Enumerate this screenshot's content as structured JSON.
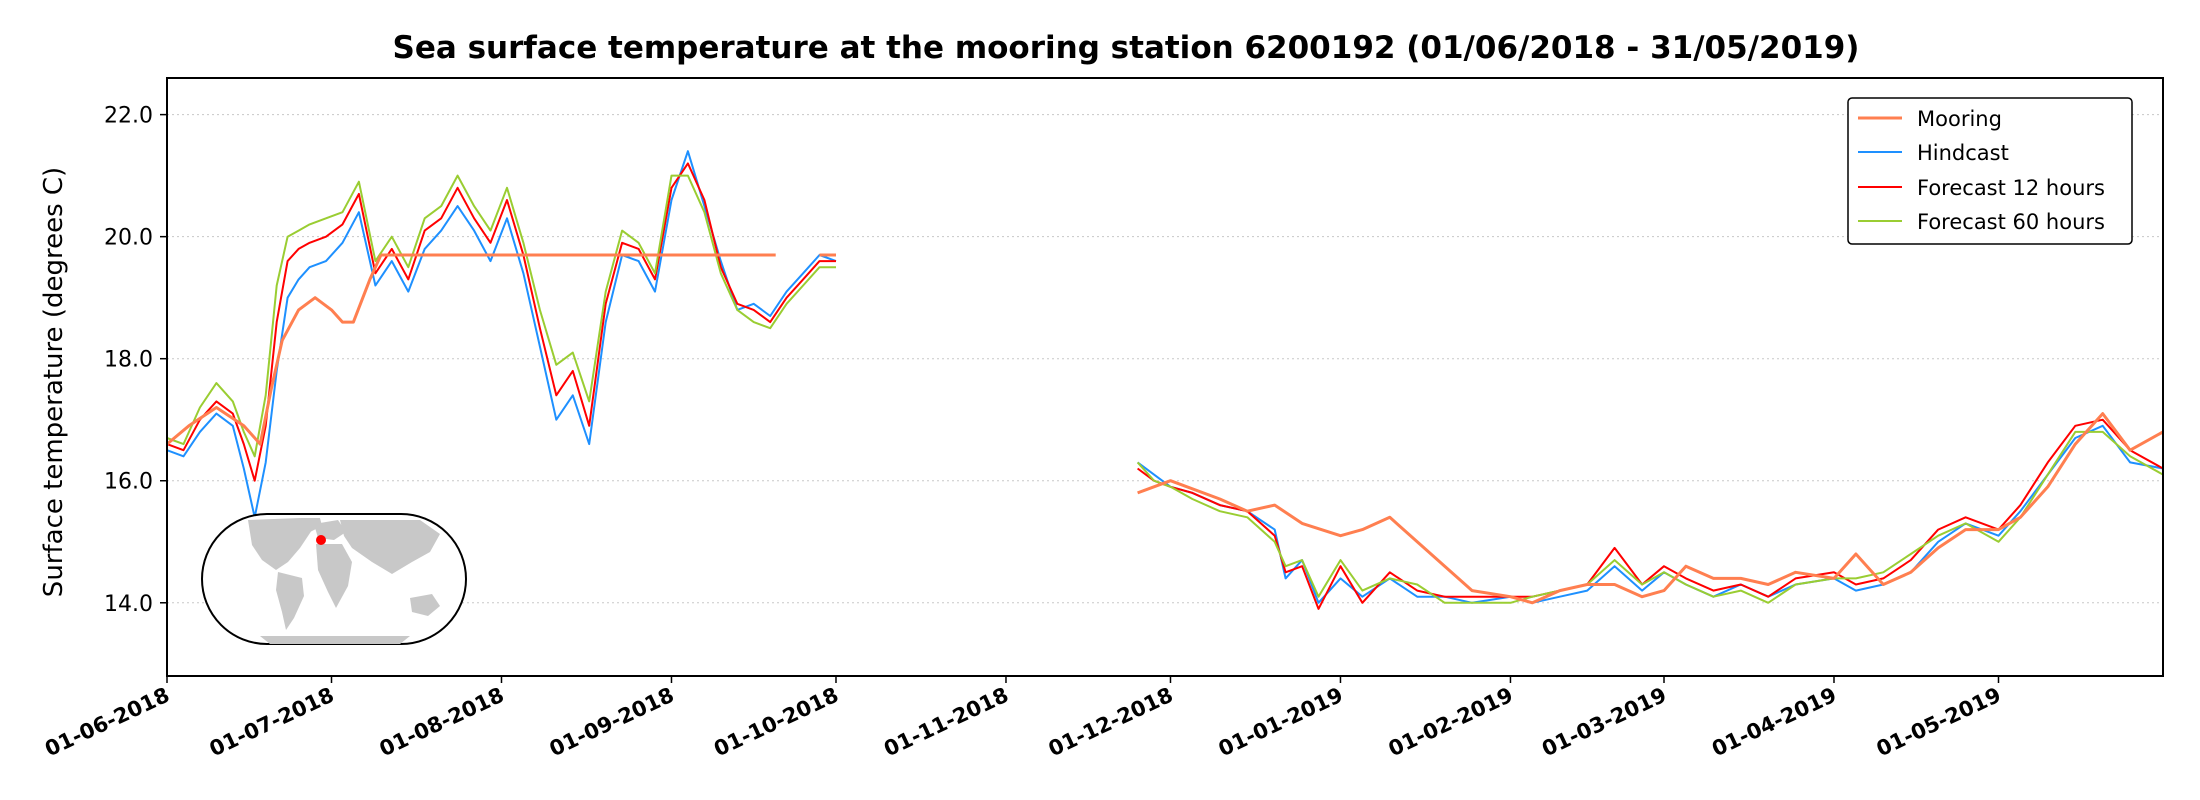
{
  "chart_data": {
    "type": "line",
    "title": "Sea surface temperature at the mooring station 6200192 (01/06/2018 - 31/05/2019)",
    "xlabel": "",
    "ylabel": "Surface temperature (degrees C)",
    "xlim": [
      "2018-06-01",
      "2019-05-31"
    ],
    "ylim": [
      12.8,
      22.6
    ],
    "yticks": [
      14.0,
      16.0,
      18.0,
      20.0,
      22.0
    ],
    "ytick_labels": [
      "14.0",
      "16.0",
      "18.0",
      "20.0",
      "22.0"
    ],
    "xticks": [
      "2018-06-01",
      "2018-07-01",
      "2018-08-01",
      "2018-09-01",
      "2018-10-01",
      "2018-11-01",
      "2018-12-01",
      "2019-01-01",
      "2019-02-01",
      "2019-03-01",
      "2019-04-01",
      "2019-05-01"
    ],
    "xtick_labels": [
      "01-06-2018",
      "01-07-2018",
      "01-08-2018",
      "01-09-2018",
      "01-10-2018",
      "01-11-2018",
      "01-12-2018",
      "01-01-2019",
      "01-02-2019",
      "01-03-2019",
      "01-04-2019",
      "01-05-2019"
    ],
    "grid": "horizontal dotted",
    "legend_position": "top-right",
    "inset": "world map with station location dot (red)",
    "series": [
      {
        "name": "Mooring",
        "color": "#ff7f50",
        "x": [
          "2018-06-01",
          "2018-06-05",
          "2018-06-10",
          "2018-06-15",
          "2018-06-18",
          "2018-06-20",
          "2018-06-22",
          "2018-06-25",
          "2018-06-28",
          "2018-07-01",
          "2018-07-03",
          "2018-07-05",
          "2018-07-08",
          "2018-07-10",
          null,
          "2018-07-10",
          "2018-08-15",
          "2018-09-01",
          "2018-09-20",
          null,
          "2018-09-28",
          "2018-10-01",
          null,
          "2018-11-25",
          "2018-12-01",
          "2018-12-10",
          "2018-12-15",
          "2018-12-20",
          "2018-12-25",
          "2019-01-01",
          "2019-01-05",
          "2019-01-10",
          "2019-01-15",
          "2019-01-20",
          "2019-01-25",
          "2019-02-01",
          "2019-02-05",
          "2019-02-10",
          "2019-02-15",
          "2019-02-20",
          "2019-02-25",
          "2019-03-01",
          "2019-03-05",
          "2019-03-10",
          "2019-03-15",
          "2019-03-20",
          "2019-03-25",
          "2019-04-01",
          "2019-04-05",
          "2019-04-10",
          "2019-04-15",
          "2019-04-20",
          "2019-04-25",
          "2019-05-01",
          "2019-05-05",
          "2019-05-10",
          "2019-05-15",
          "2019-05-20",
          "2019-05-25",
          "2019-05-31"
        ],
        "y": [
          16.6,
          16.9,
          17.2,
          16.9,
          16.6,
          17.5,
          18.3,
          18.8,
          19.0,
          18.8,
          18.6,
          18.6,
          19.3,
          19.7,
          null,
          19.7,
          19.7,
          19.7,
          19.7,
          null,
          19.7,
          19.7,
          null,
          15.8,
          16.0,
          15.7,
          15.5,
          15.6,
          15.3,
          15.1,
          15.2,
          15.4,
          15.0,
          14.6,
          14.2,
          14.1,
          14.0,
          14.2,
          14.3,
          14.3,
          14.1,
          14.2,
          14.6,
          14.4,
          14.4,
          14.3,
          14.5,
          14.4,
          14.8,
          14.3,
          14.5,
          14.9,
          15.2,
          15.2,
          15.4,
          15.9,
          16.6,
          17.1,
          16.5,
          16.8
        ]
      },
      {
        "name": "Hindcast",
        "color": "#1e90ff",
        "x": [
          "2018-06-01",
          "2018-06-04",
          "2018-06-07",
          "2018-06-10",
          "2018-06-13",
          "2018-06-15",
          "2018-06-17",
          "2018-06-19",
          "2018-06-21",
          "2018-06-23",
          "2018-06-25",
          "2018-06-27",
          "2018-06-30",
          "2018-07-03",
          "2018-07-06",
          "2018-07-09",
          "2018-07-12",
          "2018-07-15",
          "2018-07-18",
          "2018-07-21",
          "2018-07-24",
          "2018-07-27",
          "2018-07-30",
          "2018-08-02",
          "2018-08-05",
          "2018-08-08",
          "2018-08-11",
          "2018-08-14",
          "2018-08-17",
          "2018-08-20",
          "2018-08-23",
          "2018-08-26",
          "2018-08-29",
          "2018-09-01",
          "2018-09-04",
          "2018-09-07",
          "2018-09-10",
          "2018-09-13",
          "2018-09-16",
          "2018-09-19",
          "2018-09-22",
          "2018-09-25",
          "2018-09-28",
          "2018-10-01",
          null,
          "2018-11-25",
          "2018-11-28",
          "2018-12-01",
          "2018-12-05",
          "2018-12-10",
          "2018-12-15",
          "2018-12-20",
          "2018-12-22",
          "2018-12-25",
          "2018-12-28",
          "2019-01-01",
          "2019-01-05",
          "2019-01-10",
          "2019-01-15",
          "2019-01-20",
          "2019-01-25",
          "2019-02-01",
          "2019-02-05",
          "2019-02-10",
          "2019-02-15",
          "2019-02-20",
          "2019-02-25",
          "2019-03-01",
          "2019-03-05",
          "2019-03-10",
          "2019-03-15",
          "2019-03-20",
          "2019-03-25",
          "2019-04-01",
          "2019-04-05",
          "2019-04-10",
          "2019-04-15",
          "2019-04-20",
          "2019-04-25",
          "2019-05-01",
          "2019-05-05",
          "2019-05-10",
          "2019-05-15",
          "2019-05-20",
          "2019-05-25",
          "2019-05-31"
        ],
        "y": [
          16.5,
          16.4,
          16.8,
          17.1,
          16.9,
          16.2,
          15.4,
          16.3,
          17.8,
          19.0,
          19.3,
          19.5,
          19.6,
          19.9,
          20.4,
          19.2,
          19.6,
          19.1,
          19.8,
          20.1,
          20.5,
          20.1,
          19.6,
          20.3,
          19.4,
          18.2,
          17.0,
          17.4,
          16.6,
          18.6,
          19.7,
          19.6,
          19.1,
          20.6,
          21.4,
          20.5,
          19.6,
          18.8,
          18.9,
          18.7,
          19.1,
          19.4,
          19.7,
          19.6,
          null,
          16.3,
          16.1,
          15.9,
          15.8,
          15.6,
          15.5,
          15.2,
          14.4,
          14.7,
          14.0,
          14.4,
          14.1,
          14.4,
          14.1,
          14.1,
          14.0,
          14.1,
          14.0,
          14.1,
          14.2,
          14.6,
          14.2,
          14.5,
          14.3,
          14.1,
          14.3,
          14.1,
          14.3,
          14.4,
          14.2,
          14.3,
          14.5,
          15.0,
          15.3,
          15.1,
          15.5,
          16.1,
          16.7,
          16.9,
          16.3,
          16.2
        ]
      },
      {
        "name": "Forecast 12 hours",
        "color": "#ff0000",
        "x": [
          "2018-06-01",
          "2018-06-04",
          "2018-06-07",
          "2018-06-10",
          "2018-06-13",
          "2018-06-15",
          "2018-06-17",
          "2018-06-19",
          "2018-06-21",
          "2018-06-23",
          "2018-06-25",
          "2018-06-27",
          "2018-06-30",
          "2018-07-03",
          "2018-07-06",
          "2018-07-09",
          "2018-07-12",
          "2018-07-15",
          "2018-07-18",
          "2018-07-21",
          "2018-07-24",
          "2018-07-27",
          "2018-07-30",
          "2018-08-02",
          "2018-08-05",
          "2018-08-08",
          "2018-08-11",
          "2018-08-14",
          "2018-08-17",
          "2018-08-20",
          "2018-08-23",
          "2018-08-26",
          "2018-08-29",
          "2018-09-01",
          "2018-09-04",
          "2018-09-07",
          "2018-09-10",
          "2018-09-13",
          "2018-09-16",
          "2018-09-19",
          "2018-09-22",
          "2018-09-25",
          "2018-09-28",
          "2018-10-01",
          null,
          "2018-11-25",
          "2018-11-28",
          "2018-12-01",
          "2018-12-05",
          "2018-12-10",
          "2018-12-15",
          "2018-12-20",
          "2018-12-22",
          "2018-12-25",
          "2018-12-28",
          "2019-01-01",
          "2019-01-05",
          "2019-01-10",
          "2019-01-15",
          "2019-01-20",
          "2019-01-25",
          "2019-02-01",
          "2019-02-05",
          "2019-02-10",
          "2019-02-15",
          "2019-02-20",
          "2019-02-25",
          "2019-03-01",
          "2019-03-05",
          "2019-03-10",
          "2019-03-15",
          "2019-03-20",
          "2019-03-25",
          "2019-04-01",
          "2019-04-05",
          "2019-04-10",
          "2019-04-15",
          "2019-04-20",
          "2019-04-25",
          "2019-05-01",
          "2019-05-05",
          "2019-05-10",
          "2019-05-15",
          "2019-05-20",
          "2019-05-25",
          "2019-05-31"
        ],
        "y": [
          16.6,
          16.5,
          17.0,
          17.3,
          17.1,
          16.6,
          16.0,
          16.9,
          18.6,
          19.6,
          19.8,
          19.9,
          20.0,
          20.2,
          20.7,
          19.4,
          19.8,
          19.3,
          20.1,
          20.3,
          20.8,
          20.3,
          19.9,
          20.6,
          19.7,
          18.5,
          17.4,
          17.8,
          16.9,
          18.9,
          19.9,
          19.8,
          19.3,
          20.8,
          21.2,
          20.6,
          19.5,
          18.9,
          18.8,
          18.6,
          19.0,
          19.3,
          19.6,
          19.6,
          null,
          16.2,
          16.0,
          15.9,
          15.8,
          15.6,
          15.5,
          15.1,
          14.5,
          14.6,
          13.9,
          14.6,
          14.0,
          14.5,
          14.2,
          14.1,
          14.1,
          14.1,
          14.1,
          14.2,
          14.3,
          14.9,
          14.3,
          14.6,
          14.4,
          14.2,
          14.3,
          14.1,
          14.4,
          14.5,
          14.3,
          14.4,
          14.7,
          15.2,
          15.4,
          15.2,
          15.6,
          16.3,
          16.9,
          17.0,
          16.5,
          16.2
        ]
      },
      {
        "name": "Forecast 60 hours",
        "color": "#9acd32",
        "x": [
          "2018-06-01",
          "2018-06-04",
          "2018-06-07",
          "2018-06-10",
          "2018-06-13",
          "2018-06-15",
          "2018-06-17",
          "2018-06-19",
          "2018-06-21",
          "2018-06-23",
          "2018-06-25",
          "2018-06-27",
          "2018-06-30",
          "2018-07-03",
          "2018-07-06",
          "2018-07-09",
          "2018-07-12",
          "2018-07-15",
          "2018-07-18",
          "2018-07-21",
          "2018-07-24",
          "2018-07-27",
          "2018-07-30",
          "2018-08-02",
          "2018-08-05",
          "2018-08-08",
          "2018-08-11",
          "2018-08-14",
          "2018-08-17",
          "2018-08-20",
          "2018-08-23",
          "2018-08-26",
          "2018-08-29",
          "2018-09-01",
          "2018-09-04",
          "2018-09-07",
          "2018-09-10",
          "2018-09-13",
          "2018-09-16",
          "2018-09-19",
          "2018-09-22",
          "2018-09-25",
          "2018-09-28",
          "2018-10-01",
          null,
          "2018-11-25",
          "2018-11-28",
          "2018-12-01",
          "2018-12-05",
          "2018-12-10",
          "2018-12-15",
          "2018-12-20",
          "2018-12-22",
          "2018-12-25",
          "2018-12-28",
          "2019-01-01",
          "2019-01-05",
          "2019-01-10",
          "2019-01-15",
          "2019-01-20",
          "2019-01-25",
          "2019-02-01",
          "2019-02-05",
          "2019-02-10",
          "2019-02-15",
          "2019-02-20",
          "2019-02-25",
          "2019-03-01",
          "2019-03-05",
          "2019-03-10",
          "2019-03-15",
          "2019-03-20",
          "2019-03-25",
          "2019-04-01",
          "2019-04-05",
          "2019-04-10",
          "2019-04-15",
          "2019-04-20",
          "2019-04-25",
          "2019-05-01",
          "2019-05-05",
          "2019-05-10",
          "2019-05-15",
          "2019-05-20",
          "2019-05-25",
          "2019-05-31"
        ],
        "y": [
          16.7,
          16.6,
          17.2,
          17.6,
          17.3,
          16.8,
          16.4,
          17.4,
          19.2,
          20.0,
          20.1,
          20.2,
          20.3,
          20.4,
          20.9,
          19.6,
          20.0,
          19.5,
          20.3,
          20.5,
          21.0,
          20.5,
          20.1,
          20.8,
          19.9,
          18.8,
          17.9,
          18.1,
          17.3,
          19.1,
          20.1,
          19.9,
          19.4,
          21.0,
          21.0,
          20.4,
          19.4,
          18.8,
          18.6,
          18.5,
          18.9,
          19.2,
          19.5,
          19.5,
          null,
          16.3,
          16.0,
          15.9,
          15.7,
          15.5,
          15.4,
          15.0,
          14.6,
          14.7,
          14.1,
          14.7,
          14.2,
          14.4,
          14.3,
          14.0,
          14.0,
          14.0,
          14.1,
          14.2,
          14.3,
          14.7,
          14.3,
          14.5,
          14.3,
          14.1,
          14.2,
          14.0,
          14.3,
          14.4,
          14.4,
          14.5,
          14.8,
          15.1,
          15.3,
          15.0,
          15.4,
          16.1,
          16.8,
          16.8,
          16.4,
          16.1
        ]
      }
    ]
  }
}
